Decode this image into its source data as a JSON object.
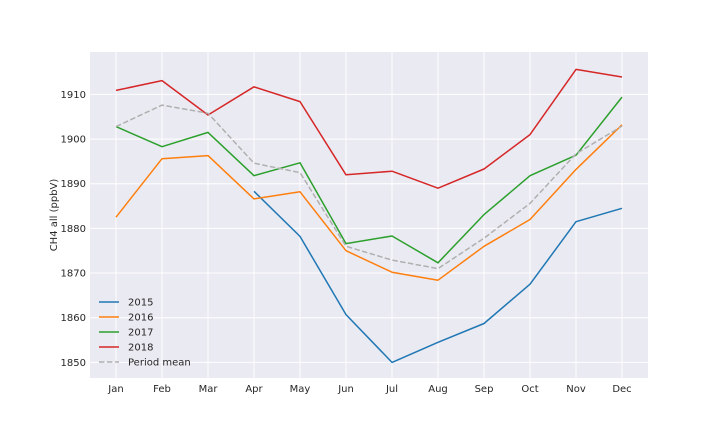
{
  "chart_data": {
    "type": "line",
    "title": "",
    "xlabel": "",
    "ylabel": "CH4 all  (ppbV)",
    "categories": [
      "Jan",
      "Feb",
      "Mar",
      "Apr",
      "May",
      "Jun",
      "Jul",
      "Aug",
      "Sep",
      "Oct",
      "Nov",
      "Dec"
    ],
    "ylim": [
      1846.5,
      1919.5
    ],
    "yticks": [
      1850,
      1860,
      1870,
      1880,
      1890,
      1900,
      1910
    ],
    "grid": true,
    "legend_position": "lower-left",
    "series": [
      {
        "name": "2015",
        "color": "#1f77b4",
        "dashed": false,
        "values": [
          null,
          null,
          null,
          1888.3,
          1878.2,
          1860.7,
          1850.0,
          1854.5,
          1858.7,
          1867.5,
          1881.5,
          1884.5
        ]
      },
      {
        "name": "2016",
        "color": "#ff7f0e",
        "dashed": false,
        "values": [
          1882.5,
          1895.6,
          1896.3,
          1886.6,
          1888.2,
          1875.0,
          1870.2,
          1868.4,
          1876.0,
          1882.0,
          1893.2,
          1903.2
        ]
      },
      {
        "name": "2017",
        "color": "#2ca02c",
        "dashed": false,
        "values": [
          1902.8,
          1898.3,
          1901.5,
          1891.8,
          1894.7,
          1876.6,
          1878.3,
          1872.3,
          1883.1,
          1891.8,
          1896.4,
          1909.4
        ]
      },
      {
        "name": "2018",
        "color": "#d62728",
        "dashed": false,
        "values": [
          1910.9,
          1913.1,
          1905.4,
          1911.7,
          1908.4,
          1892.0,
          1892.8,
          1889.0,
          1893.3,
          1901.0,
          1915.6,
          1913.9
        ]
      },
      {
        "name": "Period mean",
        "color": "#b0b0b0",
        "dashed": true,
        "values": [
          1902.8,
          1907.6,
          1905.8,
          1894.6,
          1892.5,
          1876.0,
          1872.9,
          1871.0,
          1877.8,
          1885.6,
          1896.7,
          1902.9
        ]
      }
    ]
  }
}
